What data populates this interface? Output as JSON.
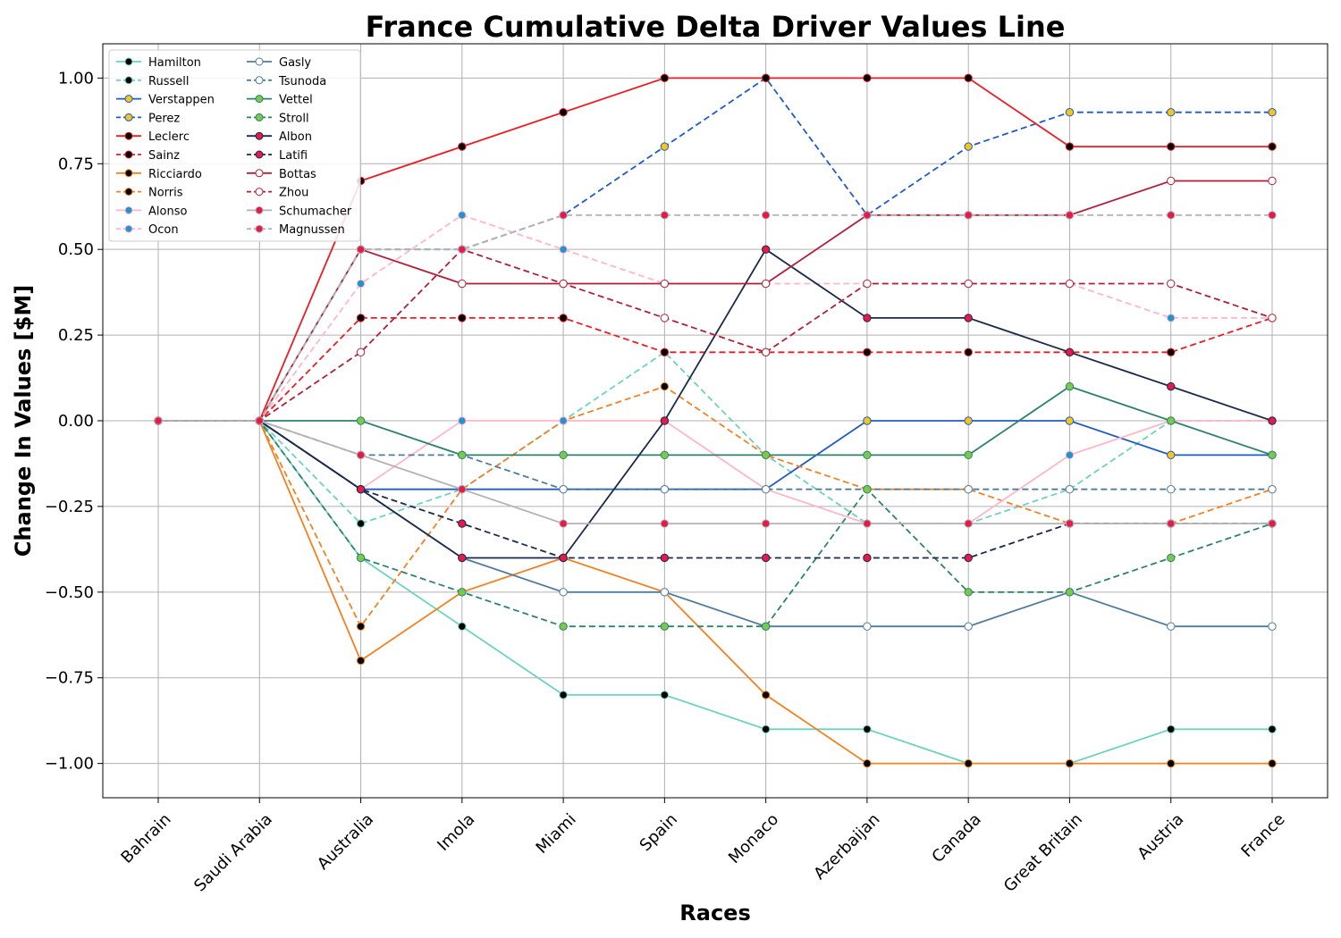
{
  "chart_data": {
    "type": "line",
    "title": "France Cumulative Delta Driver Values Line",
    "xlabel": "Races",
    "ylabel": "Change In Values [$M]",
    "ylim": [
      -1.1,
      1.1
    ],
    "yticks": [
      -1.0,
      -0.75,
      -0.5,
      -0.25,
      0.0,
      0.25,
      0.5,
      0.75,
      1.0
    ],
    "ytick_labels": [
      "−1.00",
      "−0.75",
      "−0.50",
      "−0.25",
      "0.00",
      "0.25",
      "0.50",
      "0.75",
      "1.00"
    ],
    "grid": true,
    "legend_position": "top-left",
    "categories": [
      "Bahrain",
      "Saudi Arabia",
      "Australia",
      "Imola",
      "Miami",
      "Spain",
      "Monaco",
      "Azerbaijan",
      "Canada",
      "Great Britain",
      "Austria",
      "France"
    ],
    "series": [
      {
        "name": "Hamilton",
        "color": "#6cd3bf",
        "marker": "#000000",
        "dash": false,
        "values": [
          0,
          0,
          -0.4,
          -0.6,
          -0.8,
          -0.8,
          -0.9,
          -0.9,
          -1.0,
          -1.0,
          -0.9,
          -0.9
        ]
      },
      {
        "name": "Russell",
        "color": "#6cd3bf",
        "marker": "#000000",
        "dash": true,
        "values": [
          0,
          0,
          -0.3,
          -0.2,
          0.0,
          0.2,
          -0.1,
          -0.3,
          -0.3,
          -0.2,
          0.0,
          0.0
        ]
      },
      {
        "name": "Verstappen",
        "color": "#1e5bc6",
        "marker": "#f5c518",
        "dash": false,
        "values": [
          0,
          0,
          -0.2,
          -0.2,
          -0.2,
          -0.2,
          -0.2,
          0.0,
          0.0,
          0.0,
          -0.1,
          -0.1
        ]
      },
      {
        "name": "Perez",
        "color": "#1e5bc6",
        "marker": "#f5c518",
        "dash": true,
        "values": [
          0,
          0,
          0.5,
          0.5,
          0.6,
          0.8,
          1.0,
          0.6,
          0.8,
          0.9,
          0.9,
          0.9
        ]
      },
      {
        "name": "Leclerc",
        "color": "#ed1c24",
        "marker": "#000000",
        "dash": false,
        "values": [
          0,
          0,
          0.7,
          0.8,
          0.9,
          1.0,
          1.0,
          1.0,
          1.0,
          0.8,
          0.8,
          0.8
        ]
      },
      {
        "name": "Sainz",
        "color": "#ed1c24",
        "marker": "#000000",
        "dash": true,
        "values": [
          0,
          0,
          0.3,
          0.3,
          0.3,
          0.2,
          0.2,
          0.2,
          0.2,
          0.2,
          0.2,
          0.3
        ]
      },
      {
        "name": "Ricciardo",
        "color": "#f58020",
        "marker": "#000000",
        "dash": false,
        "values": [
          0,
          0,
          -0.7,
          -0.5,
          -0.4,
          -0.5,
          -0.8,
          -1.0,
          -1.0,
          -1.0,
          -1.0,
          -1.0
        ]
      },
      {
        "name": "Norris",
        "color": "#f58020",
        "marker": "#000000",
        "dash": true,
        "values": [
          0,
          0,
          -0.6,
          -0.2,
          0.0,
          0.1,
          -0.1,
          -0.2,
          -0.2,
          -0.3,
          -0.3,
          -0.2
        ]
      },
      {
        "name": "Alonso",
        "color": "#ffb6c8",
        "marker": "#2293d1",
        "dash": false,
        "values": [
          0,
          0,
          -0.2,
          0.0,
          0.0,
          0.0,
          -0.2,
          -0.3,
          -0.3,
          -0.1,
          0.0,
          0.0
        ]
      },
      {
        "name": "Ocon",
        "color": "#ffb6c8",
        "marker": "#2293d1",
        "dash": true,
        "values": [
          0,
          0,
          0.4,
          0.6,
          0.5,
          0.4,
          0.4,
          0.4,
          0.4,
          0.4,
          0.3,
          0.3
        ]
      },
      {
        "name": "Gasly",
        "color": "#4e7c9b",
        "marker": "#ffffff",
        "dash": false,
        "values": [
          0,
          0,
          -0.2,
          -0.4,
          -0.5,
          -0.5,
          -0.6,
          -0.6,
          -0.6,
          -0.5,
          -0.6,
          -0.6
        ]
      },
      {
        "name": "Tsunoda",
        "color": "#4e7c9b",
        "marker": "#ffffff",
        "dash": true,
        "values": [
          0,
          0,
          -0.1,
          -0.1,
          -0.2,
          -0.2,
          -0.2,
          -0.2,
          -0.2,
          -0.2,
          -0.2,
          -0.2
        ]
      },
      {
        "name": "Vettel",
        "color": "#2d826d",
        "marker": "#7ac94f",
        "dash": false,
        "values": [
          0,
          0,
          0.0,
          -0.1,
          -0.1,
          -0.1,
          -0.1,
          -0.1,
          -0.1,
          0.1,
          0.0,
          -0.1
        ]
      },
      {
        "name": "Stroll",
        "color": "#2d826d",
        "marker": "#7ac94f",
        "dash": true,
        "values": [
          0,
          0,
          -0.4,
          -0.5,
          -0.6,
          -0.6,
          -0.6,
          -0.2,
          -0.5,
          -0.5,
          -0.4,
          -0.3
        ]
      },
      {
        "name": "Albon",
        "color": "#1a2a4c",
        "marker": "#e6194b",
        "dash": false,
        "values": [
          0,
          0,
          -0.2,
          -0.4,
          -0.4,
          0.0,
          0.5,
          0.3,
          0.3,
          0.2,
          0.1,
          0.0
        ]
      },
      {
        "name": "Latifi",
        "color": "#1a2a4c",
        "marker": "#e6194b",
        "dash": true,
        "values": [
          0,
          0,
          -0.2,
          -0.3,
          -0.4,
          -0.4,
          -0.4,
          -0.4,
          -0.4,
          -0.3,
          -0.3,
          -0.3
        ]
      },
      {
        "name": "Bottas",
        "color": "#b12039",
        "marker": "#ffffff",
        "dash": false,
        "values": [
          0,
          0,
          0.5,
          0.4,
          0.4,
          0.4,
          0.4,
          0.6,
          0.6,
          0.6,
          0.7,
          0.7
        ]
      },
      {
        "name": "Zhou",
        "color": "#b12039",
        "marker": "#ffffff",
        "dash": true,
        "values": [
          0,
          0,
          0.2,
          0.5,
          0.4,
          0.3,
          0.2,
          0.4,
          0.4,
          0.4,
          0.4,
          0.3
        ]
      },
      {
        "name": "Schumacher",
        "color": "#b3b3b3",
        "marker": "#e6194b",
        "dash": false,
        "values": [
          0,
          0,
          -0.1,
          -0.2,
          -0.3,
          -0.3,
          -0.3,
          -0.3,
          -0.3,
          -0.3,
          -0.3,
          -0.3
        ]
      },
      {
        "name": "Magnussen",
        "color": "#b3b3b3",
        "marker": "#e6194b",
        "dash": true,
        "values": [
          0,
          0,
          0.5,
          0.5,
          0.6,
          0.6,
          0.6,
          0.6,
          0.6,
          0.6,
          0.6,
          0.6
        ]
      }
    ]
  }
}
